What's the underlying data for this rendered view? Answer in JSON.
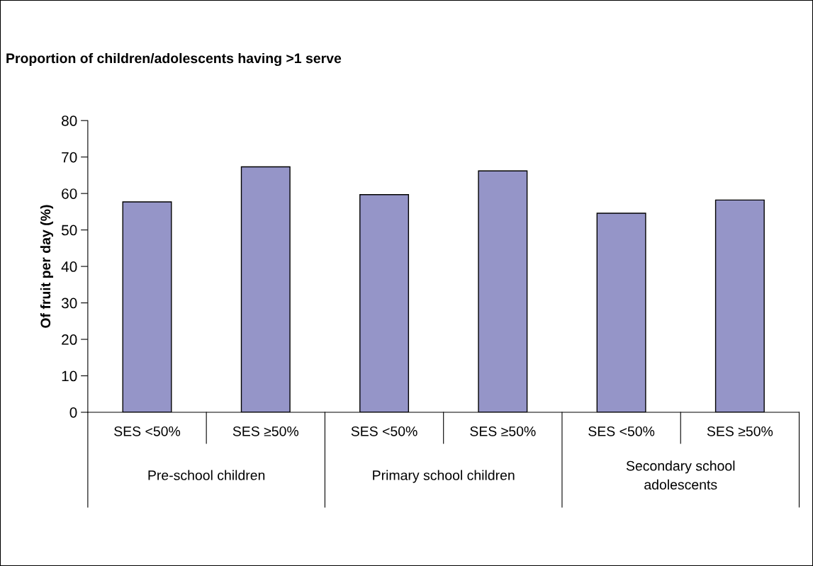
{
  "chart_data": {
    "type": "bar",
    "title": "Proportion of children/adolescents having >1 serve",
    "ylabel": "Of fruit per day (%)",
    "categories": [
      "SES <50%",
      "SES ≥50%",
      "SES <50%",
      "SES ≥50%",
      "SES <50%",
      "SES ≥50%"
    ],
    "values": [
      57.7,
      67.3,
      59.7,
      66.2,
      54.6,
      58.2
    ],
    "color": "#9595c8",
    "annotations": [
      "Pre-school children",
      "Primary school children",
      "Secondary school\nadolescents"
    ],
    "ylim": [
      0,
      80
    ],
    "yticks": [
      0,
      10,
      20,
      30,
      40,
      50,
      60,
      70,
      80
    ],
    "grid": false,
    "legend": false
  }
}
